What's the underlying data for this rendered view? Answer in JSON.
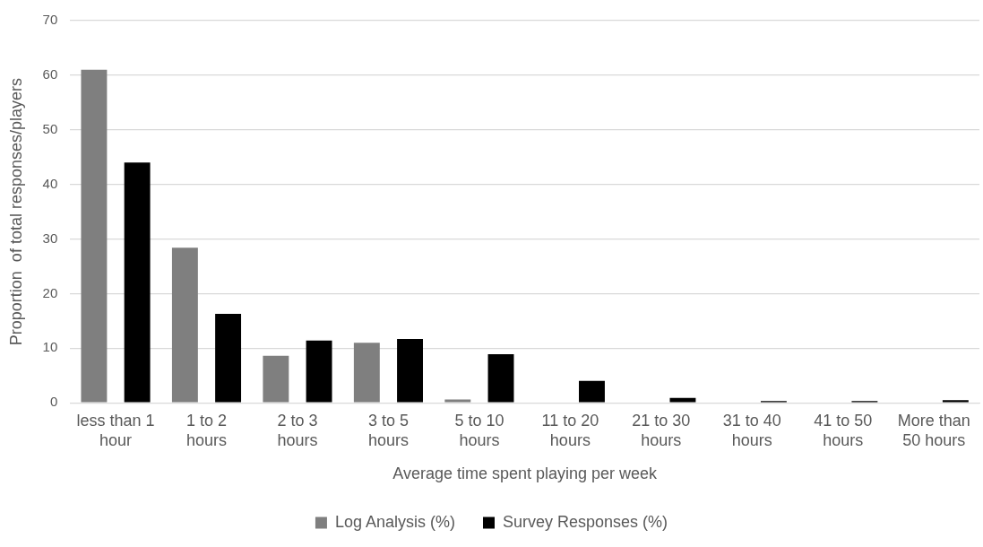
{
  "chart_data": {
    "type": "bar",
    "xlabel": "Average time spent playing per week",
    "ylabel": "Proportion  of total responses/players",
    "categories": [
      "less than 1 hour",
      "1 to 2 hours",
      "2 to 3 hours",
      "3 to 5 hours",
      "5 to 10 hours",
      "11 to 20 hours",
      "21 to 30 hours",
      "31 to 40 hours",
      "41 to 50 hours",
      "More than 50 hours"
    ],
    "series": [
      {
        "name": "Log Analysis (%)",
        "color": "#7f7f7f",
        "values": [
          61.0,
          28.4,
          8.6,
          11.0,
          0.6,
          0,
          0,
          0,
          0,
          0
        ]
      },
      {
        "name": "Survey Responses (%)",
        "color": "#000000",
        "values": [
          44.0,
          16.3,
          11.4,
          11.7,
          8.9,
          4.0,
          0.9,
          0.3,
          0.3,
          0.5
        ]
      }
    ],
    "ylim": [
      0,
      70
    ],
    "yticks": [
      0,
      10,
      20,
      30,
      40,
      50,
      60,
      70
    ],
    "grid": "y",
    "legend": "bottom"
  }
}
